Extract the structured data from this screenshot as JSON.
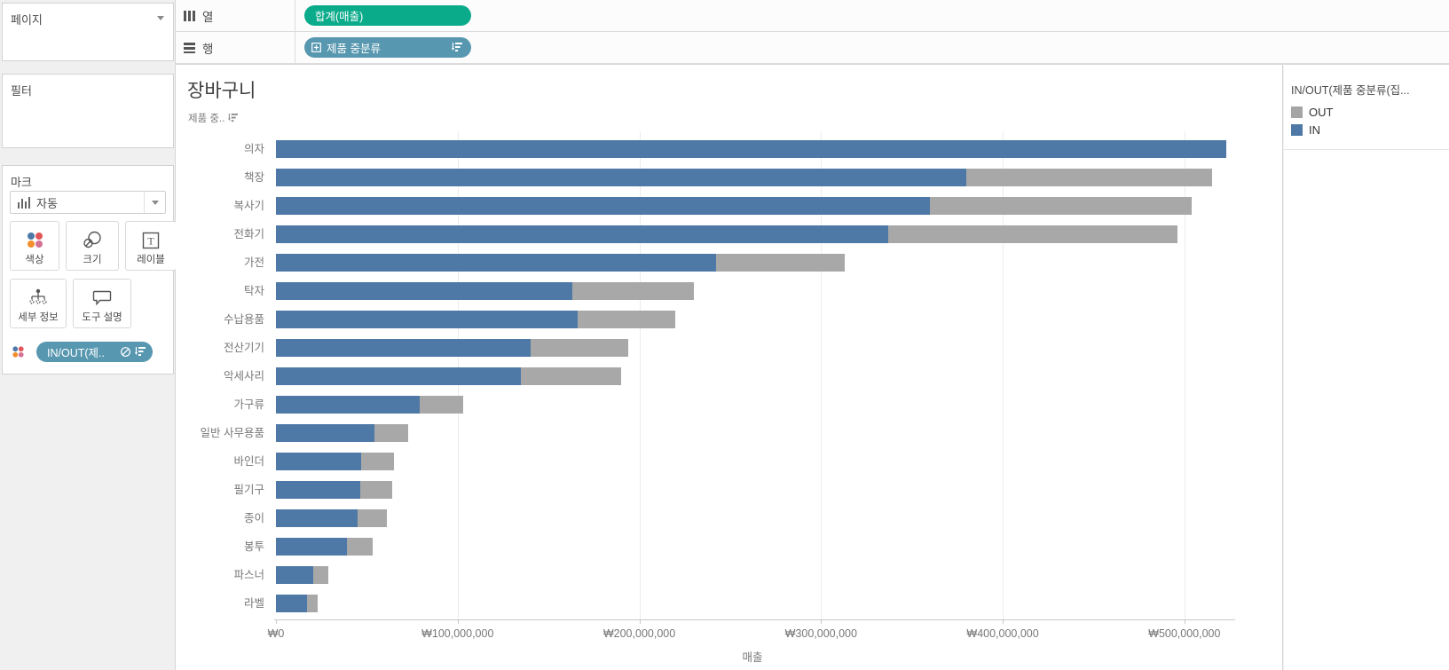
{
  "pages_panel": {
    "title": "페이지"
  },
  "filters_panel": {
    "title": "필터"
  },
  "marks_panel": {
    "title": "마크",
    "mark_type": "자동",
    "buttons": [
      {
        "label": "색상"
      },
      {
        "label": "크기"
      },
      {
        "label": "레이블"
      },
      {
        "label": "세부 정보"
      },
      {
        "label": "도구 설명"
      }
    ],
    "pill_label": "IN/OUT(제.."
  },
  "shelves": {
    "columns_label": "열",
    "columns_pill": "합계(매출)",
    "rows_label": "행",
    "rows_pill": "제품 중분류"
  },
  "sheet": {
    "title": "장바구니",
    "row_field_header": "제품 중.."
  },
  "legend": {
    "title": "IN/OUT(제품 중분류(집...",
    "items": [
      {
        "label": "OUT",
        "color": "#a5a5a5"
      },
      {
        "label": "IN",
        "color": "#4e79a7"
      }
    ]
  },
  "chart_data": {
    "type": "bar",
    "orientation": "horizontal",
    "stacked": true,
    "title": "장바구니",
    "xlabel": "매출",
    "ylabel": "제품 중분류",
    "xlim": [
      0,
      525000000
    ],
    "grid": "vertical, every 100,000,000",
    "legend_position": "right",
    "categories": [
      "의자",
      "책장",
      "복사기",
      "전화기",
      "가전",
      "탁자",
      "수납용품",
      "전산기기",
      "악세사리",
      "가구류",
      "일반 사무용품",
      "바인더",
      "필기구",
      "종이",
      "봉투",
      "파스너",
      "라벨"
    ],
    "series": [
      {
        "name": "IN",
        "color": "#4e79a7",
        "values": [
          523000000,
          380000000,
          360000000,
          337000000,
          242000000,
          163000000,
          166000000,
          140000000,
          135000000,
          79000000,
          54000000,
          47000000,
          46500000,
          45000000,
          39000000,
          20500000,
          17000000
        ]
      },
      {
        "name": "OUT",
        "color": "#a8a8a8",
        "values": [
          0,
          135000000,
          144000000,
          159000000,
          71000000,
          67000000,
          54000000,
          54000000,
          55000000,
          24000000,
          19000000,
          18000000,
          17500000,
          16000000,
          14000000,
          8500000,
          6000000
        ]
      }
    ],
    "x_tick_values": [
      0,
      100000000,
      200000000,
      300000000,
      400000000,
      500000000
    ],
    "x_tick_labels": [
      "₩0",
      "₩100,000,000",
      "₩200,000,000",
      "₩300,000,000",
      "₩400,000,000",
      "₩500,000,000"
    ]
  },
  "colors": {
    "measure_pill_green": "#0aab8b",
    "dimension_pill_teal": "#5897b0",
    "bar_in_blue": "#4e79a7",
    "bar_out_gray": "#a8a8a8",
    "panel_background": "#f0f0f1"
  }
}
